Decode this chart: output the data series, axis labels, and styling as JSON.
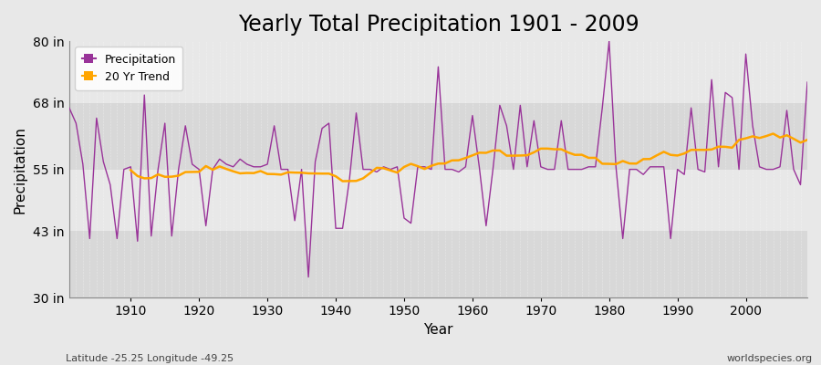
{
  "title": "Yearly Total Precipitation 1901 - 2009",
  "xlabel": "Year",
  "ylabel": "Precipitation",
  "footer_left": "Latitude -25.25 Longitude -49.25",
  "footer_right": "worldspecies.org",
  "years": [
    1901,
    1902,
    1903,
    1904,
    1905,
    1906,
    1907,
    1908,
    1909,
    1910,
    1911,
    1912,
    1913,
    1914,
    1915,
    1916,
    1917,
    1918,
    1919,
    1920,
    1921,
    1922,
    1923,
    1924,
    1925,
    1926,
    1927,
    1928,
    1929,
    1930,
    1931,
    1932,
    1933,
    1934,
    1935,
    1936,
    1937,
    1938,
    1939,
    1940,
    1941,
    1942,
    1943,
    1944,
    1945,
    1946,
    1947,
    1948,
    1949,
    1950,
    1951,
    1952,
    1953,
    1954,
    1955,
    1956,
    1957,
    1958,
    1959,
    1960,
    1961,
    1962,
    1963,
    1964,
    1965,
    1966,
    1967,
    1968,
    1969,
    1970,
    1971,
    1972,
    1973,
    1974,
    1975,
    1976,
    1977,
    1978,
    1979,
    1980,
    1981,
    1982,
    1983,
    1984,
    1985,
    1986,
    1987,
    1988,
    1989,
    1990,
    1991,
    1992,
    1993,
    1994,
    1995,
    1996,
    1997,
    1998,
    1999,
    2000,
    2001,
    2002,
    2003,
    2004,
    2005,
    2006,
    2007,
    2008,
    2009
  ],
  "precip": [
    67.0,
    64.0,
    56.0,
    41.5,
    65.0,
    56.5,
    52.0,
    41.5,
    55.0,
    55.5,
    41.0,
    69.5,
    42.0,
    55.0,
    64.0,
    42.0,
    55.0,
    63.5,
    56.0,
    55.0,
    44.0,
    55.0,
    57.0,
    56.0,
    55.5,
    57.0,
    56.0,
    55.5,
    55.5,
    56.0,
    63.5,
    55.0,
    55.0,
    45.0,
    55.0,
    34.0,
    56.5,
    63.0,
    64.0,
    43.5,
    43.5,
    53.0,
    66.0,
    55.0,
    55.0,
    54.5,
    55.5,
    55.0,
    55.5,
    45.5,
    44.5,
    55.5,
    55.5,
    55.0,
    75.0,
    55.0,
    55.0,
    54.5,
    55.5,
    65.5,
    55.5,
    44.0,
    55.0,
    67.5,
    63.5,
    55.0,
    67.5,
    55.5,
    64.5,
    55.5,
    55.0,
    55.0,
    64.5,
    55.0,
    55.0,
    55.0,
    55.5,
    55.5,
    67.0,
    80.0,
    55.5,
    41.5,
    55.0,
    55.0,
    54.0,
    55.5,
    55.5,
    55.5,
    41.5,
    55.0,
    54.0,
    67.0,
    55.0,
    54.5,
    72.5,
    55.5,
    70.0,
    69.0,
    55.0,
    77.5,
    63.5,
    55.5,
    55.0,
    55.0,
    55.5,
    66.5,
    55.0,
    52.0,
    72.0
  ],
  "precip_color": "#993399",
  "trend_color": "#FFA500",
  "bg_outer": "#e8e8e8",
  "bg_band1": "#e8e8e8",
  "bg_band2": "#d8d8d8",
  "grid_color": "#ffffff",
  "ylim": [
    30,
    80
  ],
  "yticks": [
    30,
    43,
    55,
    68,
    80
  ],
  "ytick_labels": [
    "30 in",
    "43 in",
    "55 in",
    "68 in",
    "80 in"
  ],
  "xlim": [
    1901,
    2009
  ],
  "title_fontsize": 17,
  "axis_fontsize": 11,
  "tick_fontsize": 10,
  "legend_fontsize": 9
}
